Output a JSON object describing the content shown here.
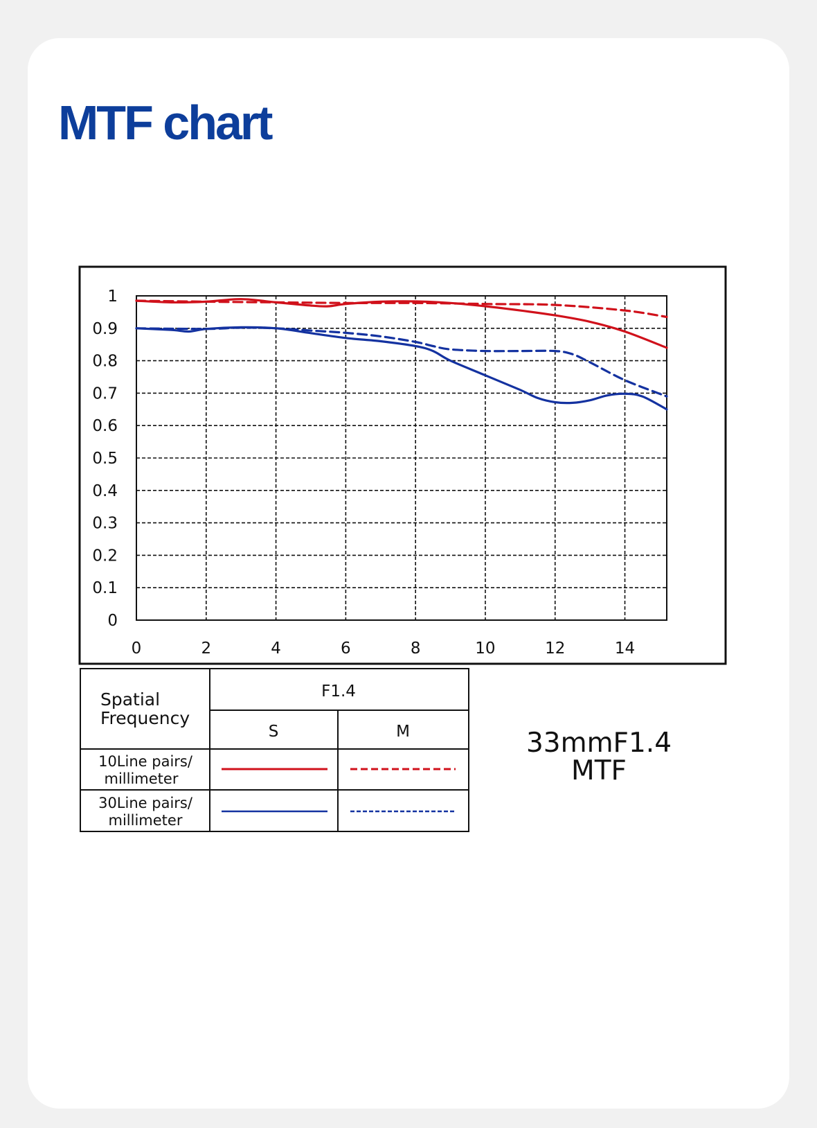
{
  "page_title": "MTF chart",
  "lens": {
    "model": "33mmF1.4",
    "label": "MTF"
  },
  "legend": {
    "header_label": "Spatial\nFrequency",
    "aperture": "F1.4",
    "col_sagittal": "S",
    "col_meridional": "M",
    "rows": [
      {
        "label_line1": "10Line pairs/",
        "label_line2": "millimeter",
        "color": "#d0111b"
      },
      {
        "label_line1": "30Line pairs/",
        "label_line2": "millimeter",
        "color": "#1432a0"
      }
    ]
  },
  "colors": {
    "red": "#d0111b",
    "blue": "#1432a0",
    "title_blue": "#0d3e9b"
  },
  "chart_data": {
    "type": "line",
    "title": "",
    "xlabel": "",
    "ylabel": "",
    "xlim": [
      0,
      15.2
    ],
    "ylim": [
      0,
      1
    ],
    "x_ticks": [
      0,
      2,
      4,
      6,
      8,
      10,
      12,
      14
    ],
    "y_ticks": [
      0,
      0.1,
      0.2,
      0.3,
      0.4,
      0.5,
      0.6,
      0.7,
      0.8,
      0.9,
      1
    ],
    "y_tick_labels": [
      "0",
      "0.1",
      "0.2",
      "0.3",
      "0.4",
      "0.5",
      "0.6",
      "0.7",
      "0.8",
      "0.9",
      "1"
    ],
    "grid": true,
    "series": [
      {
        "color": "#d0111b",
        "style": "solid",
        "x": [
          0,
          1,
          2,
          3,
          4,
          5,
          5.5,
          6,
          7,
          8,
          9,
          10,
          11,
          12,
          13,
          14,
          15.2
        ],
        "y": [
          0.985,
          0.98,
          0.982,
          0.99,
          0.98,
          0.97,
          0.968,
          0.975,
          0.982,
          0.983,
          0.978,
          0.968,
          0.955,
          0.94,
          0.92,
          0.89,
          0.84
        ]
      },
      {
        "color": "#d0111b",
        "style": "dashed",
        "x": [
          0,
          2,
          4,
          6,
          8,
          10,
          12,
          14,
          15.2
        ],
        "y": [
          0.985,
          0.982,
          0.98,
          0.978,
          0.978,
          0.975,
          0.972,
          0.955,
          0.935
        ]
      },
      {
        "color": "#1432a0",
        "style": "solid",
        "x": [
          0,
          1,
          1.5,
          2,
          3,
          4,
          5,
          6,
          7,
          8,
          8.5,
          9,
          10,
          11,
          11.5,
          12,
          12.5,
          13,
          13.5,
          14,
          14.5,
          15.2
        ],
        "y": [
          0.9,
          0.895,
          0.89,
          0.898,
          0.903,
          0.9,
          0.885,
          0.87,
          0.86,
          0.845,
          0.83,
          0.8,
          0.755,
          0.71,
          0.685,
          0.672,
          0.67,
          0.678,
          0.693,
          0.698,
          0.69,
          0.65
        ]
      },
      {
        "color": "#1432a0",
        "style": "dashed",
        "x": [
          0,
          2,
          3,
          4,
          5,
          6,
          7,
          8,
          8.5,
          9,
          10,
          11,
          12,
          12.5,
          13,
          14,
          15.2
        ],
        "y": [
          0.9,
          0.898,
          0.902,
          0.9,
          0.893,
          0.886,
          0.875,
          0.858,
          0.845,
          0.835,
          0.83,
          0.83,
          0.83,
          0.82,
          0.795,
          0.74,
          0.69
        ]
      }
    ]
  }
}
